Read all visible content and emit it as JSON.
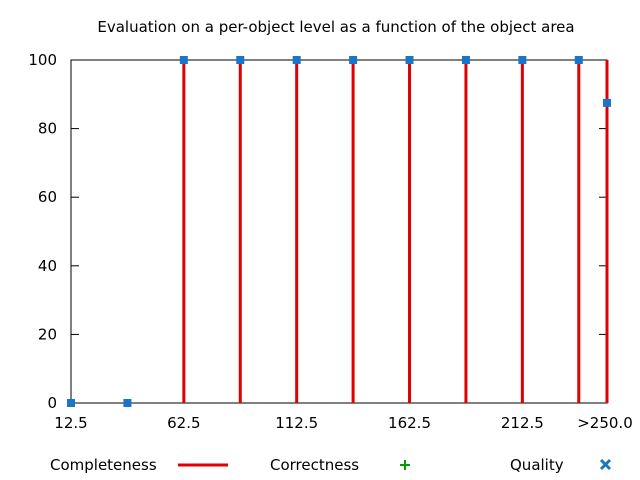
{
  "chart_data": {
    "type": "scatter",
    "title": "Evaluation on a per-object level as a function of the object area",
    "xlabel": "",
    "ylabel": "",
    "xlim": [
      12.5,
      250.0
    ],
    "ylim": [
      0,
      100
    ],
    "x_ticks": [
      "12.5",
      "62.5",
      "112.5",
      "162.5",
      "212.5",
      ">250.0"
    ],
    "x_tick_values": [
      12.5,
      62.5,
      112.5,
      162.5,
      212.5,
      250.0
    ],
    "y_ticks": [
      "0",
      "20",
      "40",
      "60",
      "80",
      "100"
    ],
    "y_tick_values": [
      0,
      20,
      40,
      60,
      80,
      100
    ],
    "grid": false,
    "legend_position": "bottom",
    "series": [
      {
        "name": "Completeness",
        "style": "impulses",
        "color": "#e00000",
        "points": [
          {
            "x": 62.5,
            "y": 100
          },
          {
            "x": 87.5,
            "y": 100
          },
          {
            "x": 112.5,
            "y": 100
          },
          {
            "x": 137.5,
            "y": 100
          },
          {
            "x": 162.5,
            "y": 100
          },
          {
            "x": 187.5,
            "y": 100
          },
          {
            "x": 212.5,
            "y": 100
          },
          {
            "x": 237.5,
            "y": 100
          },
          {
            "x": 250.0,
            "y": 100
          }
        ]
      },
      {
        "name": "Correctness",
        "style": "plus",
        "color": "#00a000",
        "points": []
      },
      {
        "name": "Quality",
        "style": "square",
        "color": "#1a75c8",
        "points": [
          {
            "x": 12.5,
            "y": 0
          },
          {
            "x": 37.5,
            "y": 0
          },
          {
            "x": 62.5,
            "y": 100
          },
          {
            "x": 87.5,
            "y": 100
          },
          {
            "x": 112.5,
            "y": 100
          },
          {
            "x": 137.5,
            "y": 100
          },
          {
            "x": 162.5,
            "y": 100
          },
          {
            "x": 187.5,
            "y": 100
          },
          {
            "x": 212.5,
            "y": 100
          },
          {
            "x": 237.5,
            "y": 100
          },
          {
            "x": 250.0,
            "y": 87.5
          }
        ]
      }
    ]
  }
}
